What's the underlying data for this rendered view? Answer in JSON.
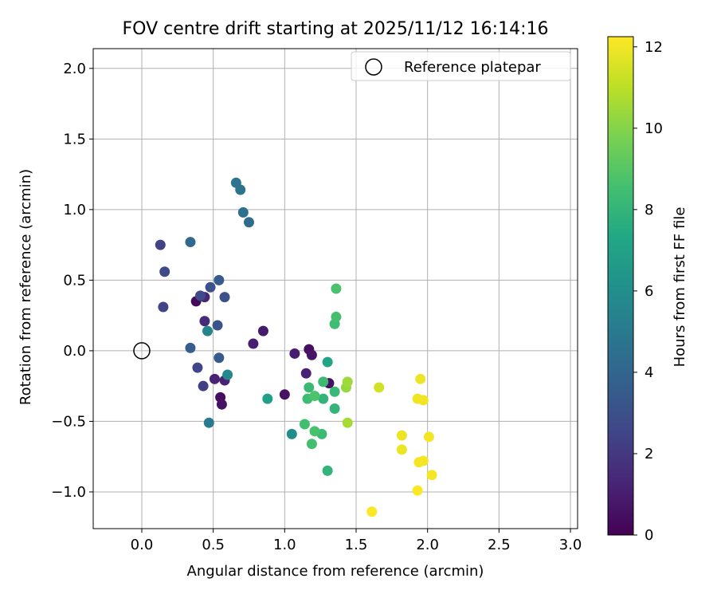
{
  "chart_data": {
    "type": "scatter",
    "title": "FOV centre drift starting at 2025/11/12 16:14:16",
    "xlabel": "Angular distance from reference (arcmin)",
    "ylabel": "Rotation from reference (arcmin)",
    "xlim": [
      -0.34,
      3.05
    ],
    "ylim": [
      -1.26,
      2.14
    ],
    "xticks": [
      0.0,
      0.5,
      1.0,
      1.5,
      2.0,
      2.5,
      3.0
    ],
    "xtick_labels": [
      "0.0",
      "0.5",
      "1.0",
      "1.5",
      "2.0",
      "2.5",
      "3.0"
    ],
    "yticks": [
      -1.0,
      -0.5,
      0.0,
      0.5,
      1.0,
      1.5,
      2.0
    ],
    "ytick_labels": [
      "−1.0",
      "−0.5",
      "0.0",
      "0.5",
      "1.0",
      "1.5",
      "2.0"
    ],
    "grid": true,
    "legend": {
      "position": "top-right",
      "label": "Reference platepar"
    },
    "reference_point": {
      "x": 0.0,
      "y": 0.0
    },
    "colorbar": {
      "label": "Hours from first FF file",
      "colormap": "viridis",
      "range": [
        0,
        12.25
      ],
      "ticks": [
        0,
        2,
        4,
        6,
        8,
        10,
        12
      ],
      "tick_labels": [
        "0",
        "2",
        "4",
        "6",
        "8",
        "10",
        "12"
      ]
    },
    "points": [
      {
        "x": 0.38,
        "y": 0.35,
        "h": 0.3
      },
      {
        "x": 0.55,
        "y": -0.33,
        "h": 0.4
      },
      {
        "x": 0.56,
        "y": -0.38,
        "h": 0.6
      },
      {
        "x": 1.0,
        "y": -0.31,
        "h": 0.6
      },
      {
        "x": 1.17,
        "y": 0.01,
        "h": 0.5
      },
      {
        "x": 1.19,
        "y": -0.03,
        "h": 0.7
      },
      {
        "x": 1.31,
        "y": -0.23,
        "h": 0.5
      },
      {
        "x": 0.85,
        "y": 0.14,
        "h": 0.9
      },
      {
        "x": 0.78,
        "y": 0.05,
        "h": 1.0
      },
      {
        "x": 1.07,
        "y": -0.02,
        "h": 1.0
      },
      {
        "x": 0.51,
        "y": -0.2,
        "h": 1.2
      },
      {
        "x": 0.58,
        "y": -0.21,
        "h": 1.2
      },
      {
        "x": 0.44,
        "y": 0.38,
        "h": 1.3
      },
      {
        "x": 1.15,
        "y": -0.16,
        "h": 1.2
      },
      {
        "x": 0.44,
        "y": 0.21,
        "h": 1.5
      },
      {
        "x": 0.43,
        "y": -0.25,
        "h": 2.3
      },
      {
        "x": 0.13,
        "y": 0.75,
        "h": 2.4
      },
      {
        "x": 0.15,
        "y": 0.31,
        "h": 2.5
      },
      {
        "x": 0.16,
        "y": 0.56,
        "h": 2.7
      },
      {
        "x": 0.39,
        "y": -0.12,
        "h": 2.6
      },
      {
        "x": 0.41,
        "y": 0.39,
        "h": 2.7
      },
      {
        "x": 0.58,
        "y": 0.38,
        "h": 3.0
      },
      {
        "x": 0.53,
        "y": 0.18,
        "h": 3.1
      },
      {
        "x": 0.48,
        "y": 0.45,
        "h": 3.1
      },
      {
        "x": 0.54,
        "y": 0.5,
        "h": 3.5
      },
      {
        "x": 0.54,
        "y": -0.05,
        "h": 3.5
      },
      {
        "x": 0.34,
        "y": 0.02,
        "h": 3.6
      },
      {
        "x": 0.34,
        "y": 0.77,
        "h": 4.1
      },
      {
        "x": 0.75,
        "y": 0.91,
        "h": 4.3
      },
      {
        "x": 0.71,
        "y": 0.98,
        "h": 4.5
      },
      {
        "x": 0.66,
        "y": 1.19,
        "h": 4.6
      },
      {
        "x": 0.69,
        "y": 1.14,
        "h": 4.7
      },
      {
        "x": 0.47,
        "y": -0.51,
        "h": 5.0
      },
      {
        "x": 0.46,
        "y": 0.14,
        "h": 5.5
      },
      {
        "x": 0.6,
        "y": -0.17,
        "h": 5.7
      },
      {
        "x": 1.05,
        "y": -0.59,
        "h": 6.0
      },
      {
        "x": 0.88,
        "y": -0.34,
        "h": 6.9
      },
      {
        "x": 1.3,
        "y": -0.08,
        "h": 7.2
      },
      {
        "x": 1.3,
        "y": -0.85,
        "h": 8.0
      },
      {
        "x": 1.35,
        "y": -0.41,
        "h": 8.0
      },
      {
        "x": 1.35,
        "y": -0.29,
        "h": 8.2
      },
      {
        "x": 1.27,
        "y": -0.34,
        "h": 8.0
      },
      {
        "x": 1.26,
        "y": -0.59,
        "h": 8.3
      },
      {
        "x": 1.27,
        "y": -0.22,
        "h": 8.3
      },
      {
        "x": 1.17,
        "y": -0.26,
        "h": 8.2
      },
      {
        "x": 1.16,
        "y": -0.34,
        "h": 8.4
      },
      {
        "x": 1.14,
        "y": -0.52,
        "h": 8.5
      },
      {
        "x": 1.19,
        "y": -0.66,
        "h": 8.6
      },
      {
        "x": 1.21,
        "y": -0.32,
        "h": 8.8
      },
      {
        "x": 1.21,
        "y": -0.57,
        "h": 8.7
      },
      {
        "x": 1.35,
        "y": 0.19,
        "h": 8.4
      },
      {
        "x": 1.36,
        "y": 0.24,
        "h": 8.6
      },
      {
        "x": 1.36,
        "y": 0.44,
        "h": 8.7
      },
      {
        "x": 1.43,
        "y": -0.26,
        "h": 10.3
      },
      {
        "x": 1.44,
        "y": -0.22,
        "h": 10.5
      },
      {
        "x": 1.44,
        "y": -0.51,
        "h": 10.6
      },
      {
        "x": 1.66,
        "y": -0.26,
        "h": 11.4
      },
      {
        "x": 1.82,
        "y": -0.6,
        "h": 11.9
      },
      {
        "x": 1.82,
        "y": -0.7,
        "h": 11.9
      },
      {
        "x": 1.95,
        "y": -0.2,
        "h": 11.9
      },
      {
        "x": 1.93,
        "y": -0.34,
        "h": 12.0
      },
      {
        "x": 1.97,
        "y": -0.35,
        "h": 12.0
      },
      {
        "x": 2.01,
        "y": -0.61,
        "h": 12.1
      },
      {
        "x": 1.94,
        "y": -0.79,
        "h": 12.1
      },
      {
        "x": 1.97,
        "y": -0.78,
        "h": 12.1
      },
      {
        "x": 2.03,
        "y": -0.88,
        "h": 12.1
      },
      {
        "x": 1.93,
        "y": -0.99,
        "h": 12.2
      },
      {
        "x": 1.61,
        "y": -1.14,
        "h": 12.2
      }
    ]
  }
}
